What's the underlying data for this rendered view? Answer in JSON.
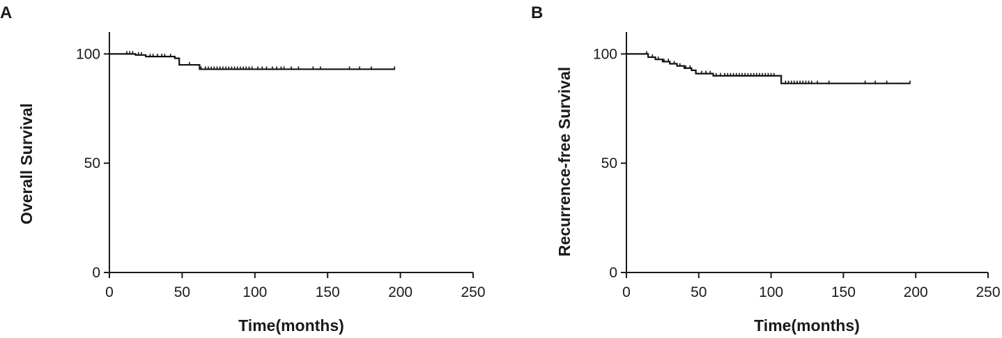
{
  "chart_data": [
    {
      "panel": "A",
      "type": "line",
      "xlabel": "Time(months)",
      "ylabel": "Overall Survival",
      "xlim": [
        0,
        250
      ],
      "ylim": [
        0,
        110
      ],
      "xticks": [
        0,
        50,
        100,
        150,
        200,
        250
      ],
      "yticks": [
        0,
        50,
        100
      ],
      "xtick_labels": [
        "0",
        "50",
        "100",
        "150",
        "200",
        "250"
      ],
      "ytick_labels": [
        "0",
        "50",
        "100"
      ],
      "grid": false,
      "series": [
        {
          "x": [
            0,
            15,
            18,
            25,
            40,
            45,
            48,
            60,
            62,
            196
          ],
          "y": [
            100,
            100,
            99.5,
            98.8,
            98.8,
            98.0,
            95.0,
            95.0,
            93.0,
            93.0
          ],
          "censor_x": [
            12,
            14,
            16,
            20,
            22,
            28,
            30,
            33,
            36,
            38,
            42,
            55,
            63,
            66,
            68,
            70,
            72,
            74,
            76,
            78,
            80,
            82,
            84,
            86,
            88,
            90,
            92,
            94,
            96,
            98,
            102,
            105,
            108,
            112,
            115,
            118,
            120,
            125,
            130,
            140,
            145,
            165,
            172,
            180,
            196
          ]
        }
      ]
    },
    {
      "panel": "B",
      "type": "line",
      "xlabel": "Time(months)",
      "ylabel": "Recurrence-free Survival",
      "xlim": [
        0,
        250
      ],
      "ylim": [
        0,
        110
      ],
      "xticks": [
        0,
        50,
        100,
        150,
        200,
        250
      ],
      "yticks": [
        0,
        50,
        100
      ],
      "xtick_labels": [
        "0",
        "50",
        "100",
        "150",
        "200",
        "250"
      ],
      "ytick_labels": [
        "0",
        "50",
        "100"
      ],
      "grid": false,
      "series": [
        {
          "x": [
            0,
            12,
            15,
            20,
            25,
            30,
            35,
            40,
            45,
            48,
            60,
            105,
            107,
            196
          ],
          "y": [
            100,
            100,
            98.5,
            97.5,
            96.5,
            95.5,
            94.5,
            93.5,
            92.5,
            91.0,
            90.0,
            90.0,
            86.5,
            86.5
          ],
          "censor_x": [
            14,
            18,
            22,
            26,
            29,
            33,
            37,
            41,
            44,
            52,
            55,
            58,
            62,
            65,
            68,
            70,
            72,
            74,
            76,
            78,
            80,
            82,
            84,
            86,
            88,
            90,
            92,
            94,
            96,
            98,
            100,
            102,
            110,
            112,
            114,
            116,
            118,
            120,
            122,
            124,
            126,
            128,
            132,
            140,
            165,
            172,
            180,
            196
          ]
        }
      ]
    }
  ]
}
